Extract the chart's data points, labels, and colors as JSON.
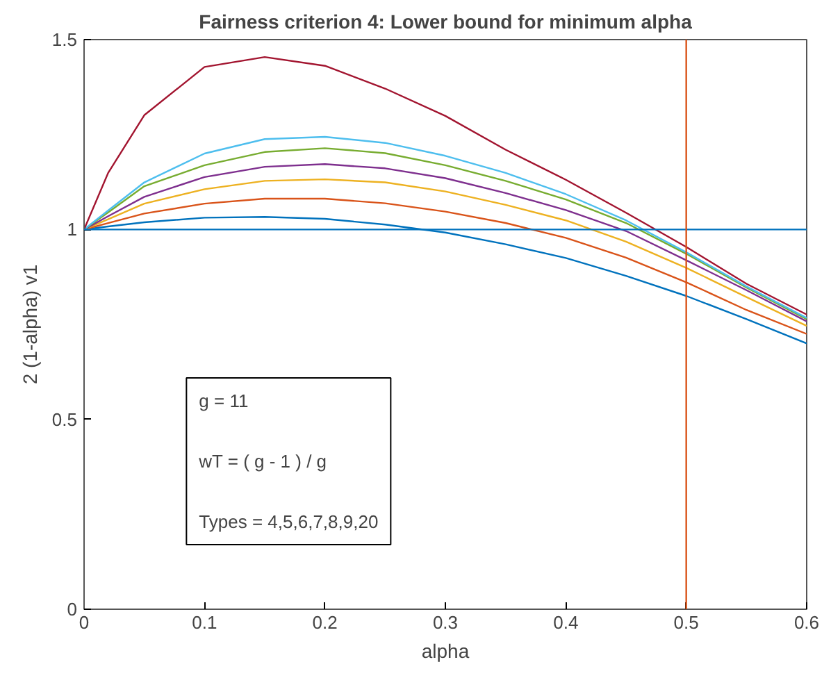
{
  "chart_data": {
    "type": "line",
    "title": "Fairness criterion 4: Lower bound for minimum alpha",
    "xlabel": "alpha",
    "ylabel": "2 (1-alpha) v1",
    "x": [
      0,
      0.02,
      0.05,
      0.1,
      0.15,
      0.2,
      0.25,
      0.3,
      0.35,
      0.4,
      0.45,
      0.5,
      0.55,
      0.6
    ],
    "series": [
      {
        "color": "#0072bd",
        "values": [
          1,
          1.008,
          1.019,
          1.031,
          1.033,
          1.028,
          1.013,
          0.992,
          0.961,
          0.925,
          0.878,
          0.825,
          0.764,
          0.7
        ]
      },
      {
        "color": "#d95319",
        "values": [
          1,
          1.017,
          1.042,
          1.068,
          1.081,
          1.081,
          1.069,
          1.047,
          1.017,
          0.978,
          0.926,
          0.861,
          0.788,
          0.725
        ]
      },
      {
        "color": "#edb120",
        "values": [
          1,
          1.027,
          1.068,
          1.106,
          1.128,
          1.132,
          1.124,
          1.1,
          1.065,
          1.024,
          0.968,
          0.899,
          0.822,
          0.746
        ]
      },
      {
        "color": "#7e2f8e",
        "values": [
          1,
          1.035,
          1.086,
          1.138,
          1.165,
          1.172,
          1.161,
          1.135,
          1.096,
          1.051,
          0.996,
          0.919,
          0.84,
          0.758
        ]
      },
      {
        "color": "#77ac30",
        "values": [
          1,
          1.045,
          1.114,
          1.169,
          1.204,
          1.214,
          1.201,
          1.169,
          1.128,
          1.079,
          1.017,
          0.936,
          0.847,
          0.764
        ]
      },
      {
        "color": "#4dbeee",
        "values": [
          1,
          1.05,
          1.124,
          1.2,
          1.238,
          1.244,
          1.228,
          1.194,
          1.149,
          1.093,
          1.024,
          0.94,
          0.85,
          0.767
        ]
      },
      {
        "color": "#a2142f",
        "values": [
          1,
          1.149,
          1.301,
          1.428,
          1.454,
          1.431,
          1.371,
          1.299,
          1.21,
          1.131,
          1.044,
          0.954,
          0.857,
          0.776
        ]
      }
    ],
    "ref_lines": [
      {
        "axis": "y",
        "value": 1,
        "color": "#0072bd"
      },
      {
        "axis": "x",
        "value": 0.5,
        "color": "#d95319"
      }
    ],
    "annotations": [
      "g = 11",
      "wT = ( g - 1 ) / g",
      "Types = 4,5,6,7,8,9,20"
    ],
    "xlim": [
      0,
      0.6
    ],
    "ylim": [
      0,
      1.5
    ],
    "xticks": [
      0,
      0.1,
      0.2,
      0.3,
      0.4,
      0.5,
      0.6
    ],
    "yticks": [
      0,
      0.5,
      1,
      1.5
    ],
    "grid": false,
    "marker": "none",
    "line_style": "solid"
  }
}
